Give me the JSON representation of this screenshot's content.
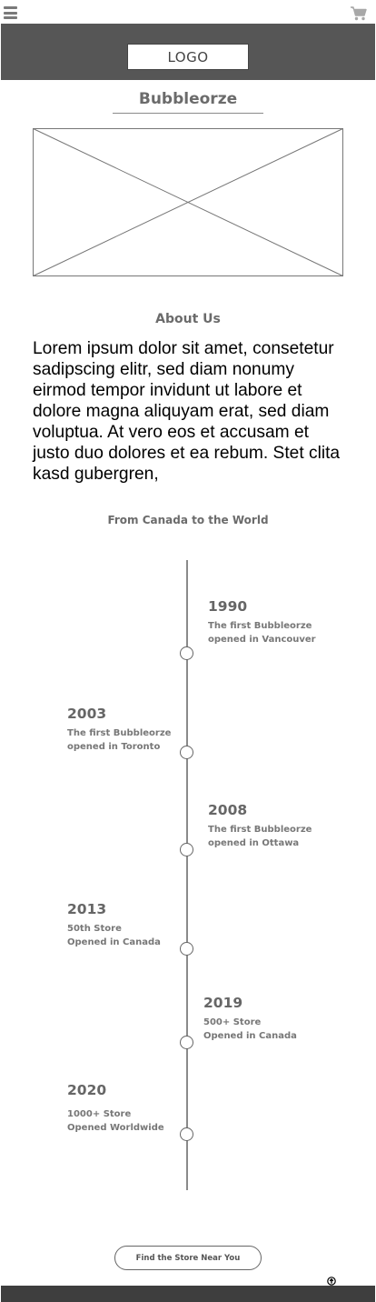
{
  "header": {
    "logo_label": "LOGO",
    "brand_name": "Bubbleorze"
  },
  "about": {
    "title": "About Us",
    "text": "Lorem ipsum dolor sit amet, consetetur sadipscing elitr, sed diam nonumy eirmod tempor invidunt ut labore et dolore magna aliquyam erat, sed diam voluptua. At vero eos et accusam et justo duo dolores et ea rebum. Stet clita kasd gubergren,"
  },
  "timeline": {
    "title": "From Canada to the World",
    "events": [
      {
        "year": "1990",
        "line1": "The first Bubbleorze",
        "line2": "opened in Vancouver",
        "side": "right"
      },
      {
        "year": "2003",
        "line1": "The first Bubbleorze",
        "line2": "opened in Toronto",
        "side": "left"
      },
      {
        "year": "2008",
        "line1": "The first Bubbleorze",
        "line2": "opened in Ottawa",
        "side": "right"
      },
      {
        "year": "2013",
        "line1": "50th Store",
        "line2": "Opened in Canada",
        "side": "left"
      },
      {
        "year": "2019",
        "line1": "500+ Store",
        "line2": "Opened in Canada",
        "side": "right"
      },
      {
        "year": "2020",
        "line1": "1000+ Store",
        "line2": "Opened Worldwide",
        "side": "left"
      }
    ]
  },
  "cta": {
    "find_store_label": "Find the Store Near You"
  },
  "icons": {
    "menu": "hamburger-menu-icon",
    "cart": "shopping-cart-icon",
    "back_to_top": "arrow-up-circle-icon"
  },
  "colors": {
    "header_bg": "#565656",
    "footer_bg": "#3e3e3e",
    "text_gray": "#666666"
  }
}
